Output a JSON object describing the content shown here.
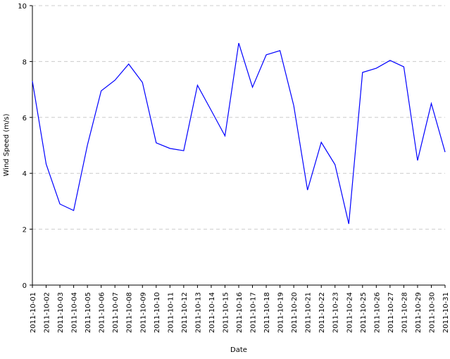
{
  "chart_data": {
    "type": "line",
    "x_label": "Date",
    "y_label": "Wind Speed (m/s)",
    "x": [
      "2011-10-01",
      "2011-10-02",
      "2011-10-03",
      "2011-10-04",
      "2011-10-05",
      "2011-10-06",
      "2011-10-07",
      "2011-10-08",
      "2011-10-09",
      "2011-10-10",
      "2011-10-11",
      "2011-10-12",
      "2011-10-13",
      "2011-10-14",
      "2011-10-15",
      "2011-10-16",
      "2011-10-17",
      "2011-10-18",
      "2011-10-19",
      "2011-10-20",
      "2011-10-21",
      "2011-10-22",
      "2011-10-23",
      "2011-10-24",
      "2011-10-25",
      "2011-10-26",
      "2011-10-27",
      "2011-10-28",
      "2011-10-29",
      "2011-10-30",
      "2011-10-31"
    ],
    "values": [
      7.3,
      4.33,
      2.9,
      2.67,
      5.01,
      6.95,
      7.33,
      7.91,
      7.25,
      5.09,
      4.89,
      4.81,
      7.15,
      6.25,
      5.34,
      8.66,
      7.08,
      8.24,
      8.39,
      6.42,
      3.4,
      5.11,
      4.31,
      2.19,
      7.61,
      7.76,
      8.04,
      7.81,
      4.46,
      6.5,
      4.76
    ],
    "color": "#0000ff",
    "ylim": [
      0,
      10
    ],
    "yticks": [
      0,
      2,
      4,
      6,
      8,
      10
    ],
    "grid": true
  }
}
